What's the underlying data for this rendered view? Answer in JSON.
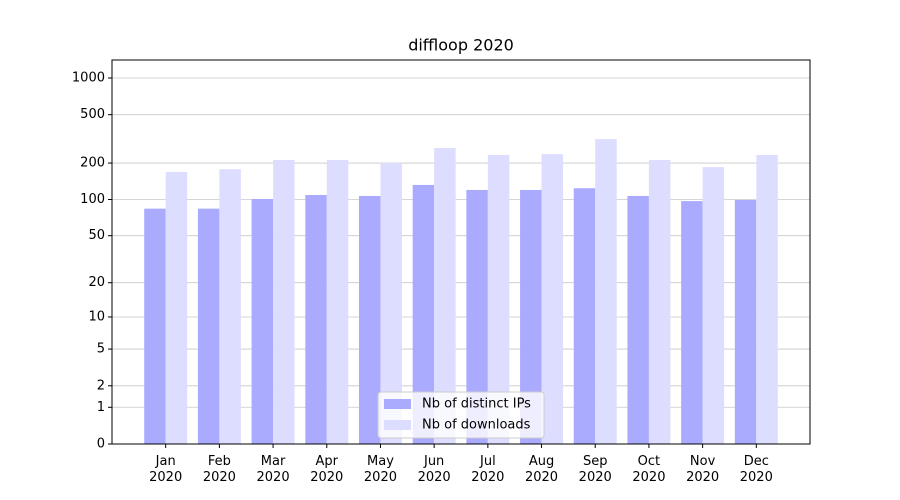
{
  "chart_data": {
    "type": "bar",
    "title": "diffloop 2020",
    "categories": [
      "Jan\n2020",
      "Feb\n2020",
      "Mar\n2020",
      "Apr\n2020",
      "May\n2020",
      "Jun\n2020",
      "Jul\n2020",
      "Aug\n2020",
      "Sep\n2020",
      "Oct\n2020",
      "Nov\n2020",
      "Dec\n2020"
    ],
    "series": [
      {
        "name": "Nb of distinct IPs",
        "color": "#aaaaff",
        "values": [
          84,
          84,
          101,
          109,
          107,
          132,
          120,
          120,
          124,
          107,
          97,
          99
        ]
      },
      {
        "name": "Nb of downloads",
        "color": "#ddddff",
        "values": [
          169,
          178,
          212,
          212,
          200,
          266,
          233,
          237,
          315,
          212,
          185,
          233
        ]
      }
    ],
    "yscale": "symlog",
    "ylim": [
      0,
      1405
    ],
    "yticks": [
      0,
      1,
      2,
      5,
      10,
      20,
      50,
      100,
      200,
      500,
      1000
    ],
    "grid": true,
    "legend": "lower center"
  }
}
